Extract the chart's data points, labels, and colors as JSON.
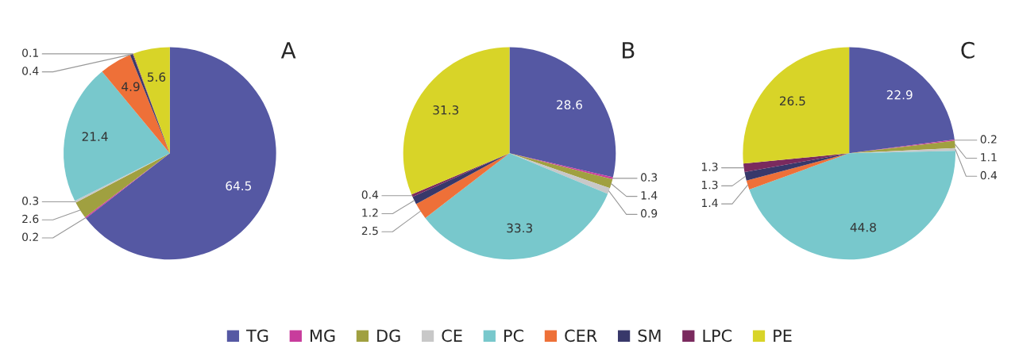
{
  "chart_data": [
    {
      "type": "pie",
      "title": "A",
      "categories": [
        "TG",
        "MG",
        "DG",
        "CE",
        "PC",
        "CER",
        "SM",
        "LPC",
        "PE"
      ],
      "values": [
        64.5,
        0.2,
        2.6,
        0.3,
        21.4,
        4.9,
        0.4,
        0.1,
        5.6
      ],
      "colors": [
        "#5558a3",
        "#c83c9c",
        "#a0a040",
        "#c8c8c8",
        "#78c8cc",
        "#ee7038",
        "#38386a",
        "#7a2a5e",
        "#d8d428"
      ],
      "data_labels": true,
      "legend": "bottom"
    },
    {
      "type": "pie",
      "title": "B",
      "categories": [
        null,
        null,
        null,
        null,
        null,
        null,
        null,
        null,
        null
      ],
      "values": [
        28.6,
        0.3,
        1.4,
        0.9,
        33.3,
        2.5,
        1.2,
        0.4,
        31.3
      ],
      "colors": [
        "#5558a3",
        "#c83c9c",
        "#a0a040",
        "#c8c8c8",
        "#78c8cc",
        "#ee7038",
        "#38386a",
        "#7a2a5e",
        "#d8d428"
      ],
      "data_labels": true
    },
    {
      "type": "pie",
      "title": "C",
      "categories": [
        null,
        null,
        null,
        null,
        null,
        null,
        null,
        null,
        null
      ],
      "values": [
        22.9,
        0.2,
        1.1,
        0.4,
        44.8,
        1.4,
        1.3,
        1.3,
        26.5
      ],
      "colors": [
        "#5558a3",
        "#c83c9c",
        "#a0a040",
        "#c8c8c8",
        "#78c8cc",
        "#ee7038",
        "#38386a",
        "#7a2a5e",
        "#d8d428"
      ],
      "data_labels": true
    }
  ]
}
